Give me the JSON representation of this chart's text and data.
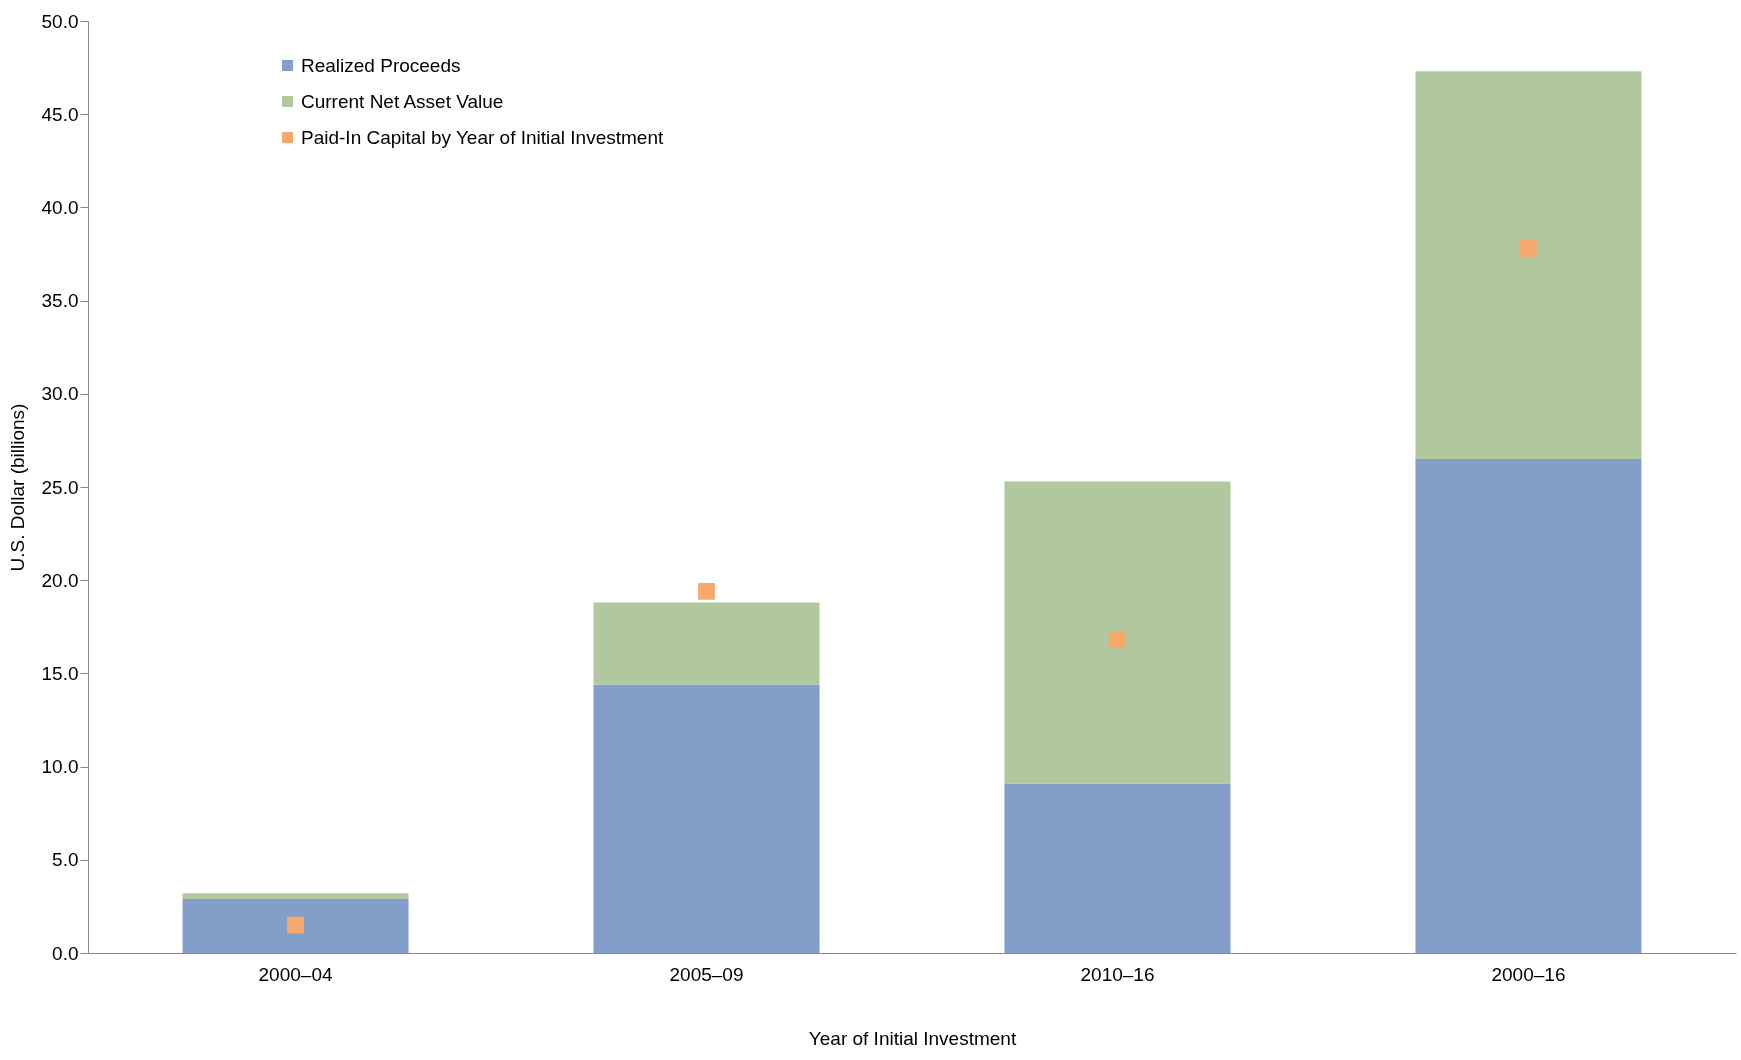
{
  "chart_data": {
    "type": "bar",
    "stacked": true,
    "xlabel": "Year of Initial Investment",
    "ylabel": "U.S. Dollar (billions)",
    "categories": [
      "2000–04",
      "2005–09",
      "2010–16",
      "2000–16"
    ],
    "series": [
      {
        "name": "Realized Proceeds",
        "color": "#839ec9",
        "values": [
          2.9,
          14.4,
          9.1,
          26.5
        ]
      },
      {
        "name": "Current Net Asset Value",
        "color": "#b1c89e",
        "values": [
          0.3,
          4.4,
          16.2,
          20.8
        ]
      },
      {
        "name": "Paid-In Capital by Year of Initial Investment",
        "color": "#f6a96b",
        "type": "scatter",
        "marker": "square",
        "values": [
          1.5,
          19.4,
          16.8,
          37.8
        ]
      }
    ],
    "ylim": [
      0,
      50
    ],
    "yticks": [
      {
        "value": 0,
        "label": "0.0"
      },
      {
        "value": 5,
        "label": "5.0"
      },
      {
        "value": 10,
        "label": "10.0"
      },
      {
        "value": 15,
        "label": "15.0"
      },
      {
        "value": 20,
        "label": "20.0"
      },
      {
        "value": 25,
        "label": "25.0"
      },
      {
        "value": 30,
        "label": "30.0"
      },
      {
        "value": 35,
        "label": "35.0"
      },
      {
        "value": 40,
        "label": "40.0"
      },
      {
        "value": 45,
        "label": "45.0"
      },
      {
        "value": 50,
        "label": "50.0"
      }
    ],
    "grid": false,
    "legend": "top left"
  }
}
